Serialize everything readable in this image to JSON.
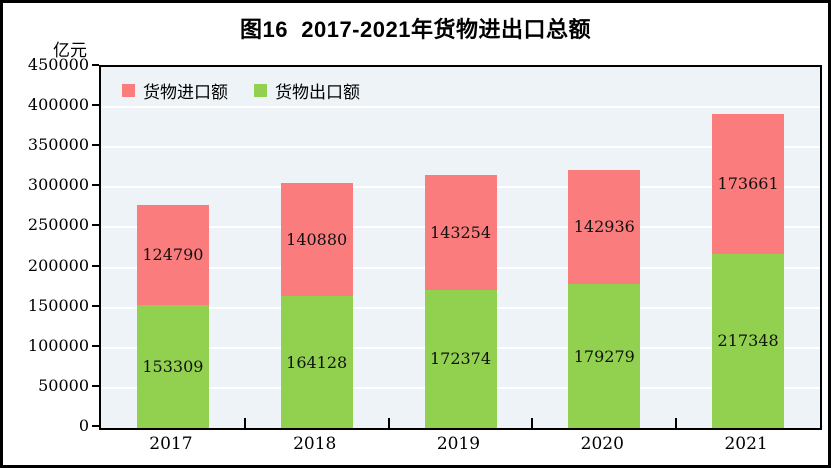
{
  "title": "图16  2017-2021年货物进出口总额",
  "unit_label": "亿元",
  "legend": [
    {
      "label": "货物进口额",
      "color": "#fb7c7d"
    },
    {
      "label": "货物出口额",
      "color": "#92d050"
    }
  ],
  "chart_data": {
    "type": "bar",
    "stacked": true,
    "title": "图16  2017-2021年货物进出口总额",
    "ylabel": "亿元",
    "xlabel": "",
    "categories": [
      "2017",
      "2018",
      "2019",
      "2020",
      "2021"
    ],
    "series": [
      {
        "name": "货物出口额",
        "color": "#92d050",
        "values": [
          153309,
          164128,
          172374,
          179279,
          217348
        ]
      },
      {
        "name": "货物进口额",
        "color": "#fb7c7d",
        "values": [
          124790,
          140880,
          143254,
          142936,
          173661
        ]
      }
    ],
    "ylim": [
      0,
      450000
    ],
    "ytick_step": 50000,
    "y_ticks": [
      "450000",
      "400000",
      "350000",
      "300000",
      "250000",
      "200000",
      "150000",
      "100000",
      "50000",
      "0"
    ],
    "grid": true,
    "plot_background": "#edf3f7",
    "gridline_color": "#ffffff",
    "legend_position": "top-left-inside"
  }
}
